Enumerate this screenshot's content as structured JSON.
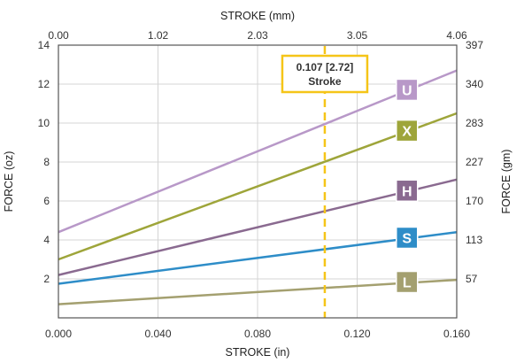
{
  "chart_data": {
    "type": "line",
    "xlabel_bottom": "STROKE (in)",
    "xlabel_top": "STROKE (mm)",
    "ylabel_left": "FORCE (oz)",
    "ylabel_right": "FORCE (gm)",
    "xlim": [
      0,
      0.16
    ],
    "ylim": [
      0,
      14
    ],
    "x_ticks_bottom": [
      "0.000",
      "0.040",
      "0.080",
      "0.120",
      "0.160"
    ],
    "x_ticks_top": [
      "0.00",
      "1.02",
      "2.03",
      "3.05",
      "4.06"
    ],
    "y_ticks_left": [
      2,
      4,
      6,
      8,
      10,
      12,
      14
    ],
    "y_ticks_right": [
      "57",
      "113",
      "170",
      "227",
      "283",
      "340",
      "397"
    ],
    "grid": true,
    "series": [
      {
        "name": "U",
        "x": [
          0,
          0.16
        ],
        "values": [
          4.4,
          12.7
        ],
        "color": "#b898c8"
      },
      {
        "name": "X",
        "x": [
          0,
          0.16
        ],
        "values": [
          3.0,
          10.5
        ],
        "color": "#9ea53a"
      },
      {
        "name": "H",
        "x": [
          0,
          0.16
        ],
        "values": [
          2.2,
          7.1
        ],
        "color": "#8a6a90"
      },
      {
        "name": "S",
        "x": [
          0,
          0.16
        ],
        "values": [
          1.75,
          4.4
        ],
        "color": "#2e8dc8"
      },
      {
        "name": "L",
        "x": [
          0,
          0.16
        ],
        "values": [
          0.7,
          1.95
        ],
        "color": "#a4a070"
      }
    ],
    "annotation": {
      "x": 0.107,
      "line1": "0.107 [2.72]",
      "line2": "Stroke",
      "color": "#f5c518"
    }
  }
}
